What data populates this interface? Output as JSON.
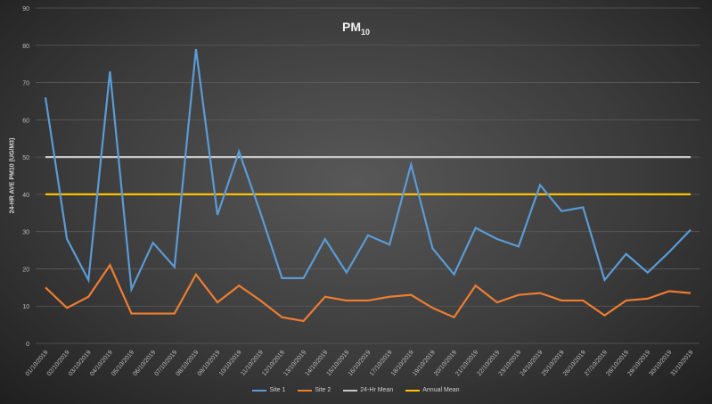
{
  "chart_data": {
    "type": "line",
    "title_main": "PM",
    "title_sub": "10",
    "xlabel": "",
    "ylabel": "24-HR AVE PM10 (UG/M3)",
    "ylim": [
      0,
      90
    ],
    "yticks": [
      0,
      10,
      20,
      30,
      40,
      50,
      60,
      70,
      80,
      90
    ],
    "grid": true,
    "legend": "bottom",
    "categories": [
      "01/10/2019",
      "02/10/2019",
      "03/10/2019",
      "04/10/2019",
      "05/10/2019",
      "06/10/2019",
      "07/10/2019",
      "08/10/2019",
      "09/10/2019",
      "10/10/2019",
      "11/10/2019",
      "12/10/2019",
      "13/10/2019",
      "14/10/2019",
      "15/10/2019",
      "16/10/2019",
      "17/10/2019",
      "18/10/2019",
      "19/10/2019",
      "20/10/2019",
      "21/10/2019",
      "22/10/2019",
      "23/10/2019",
      "24/10/2019",
      "25/10/2019",
      "26/10/2019",
      "27/10/2019",
      "28/10/2019",
      "29/10/2019",
      "30/10/2019",
      "31/10/2019"
    ],
    "series": [
      {
        "name": "Site 1",
        "color": "#5b9bd5",
        "values": [
          66,
          28,
          17,
          73,
          14.5,
          27,
          20.5,
          79,
          34.5,
          51.5,
          35,
          17.5,
          17.5,
          28,
          19,
          29,
          26.5,
          48,
          25.5,
          18.5,
          31,
          28,
          26,
          42.5,
          35.5,
          36.5,
          17,
          24,
          19,
          24.5,
          30.5
        ]
      },
      {
        "name": "Site 2",
        "color": "#ed7d31",
        "values": [
          15,
          9.5,
          12.5,
          21,
          8,
          8,
          8,
          18.5,
          11,
          15.5,
          11.5,
          7,
          6,
          12.5,
          11.5,
          11.5,
          12.5,
          13,
          9.5,
          7,
          15.5,
          11,
          13,
          13.5,
          11.5,
          11.5,
          7.5,
          11.5,
          12,
          14,
          13.5
        ]
      },
      {
        "name": "24-Hr Mean",
        "color": "#c8c8c8",
        "values": [
          50,
          50,
          50,
          50,
          50,
          50,
          50,
          50,
          50,
          50,
          50,
          50,
          50,
          50,
          50,
          50,
          50,
          50,
          50,
          50,
          50,
          50,
          50,
          50,
          50,
          50,
          50,
          50,
          50,
          50,
          50
        ]
      },
      {
        "name": "Annual Mean",
        "color": "#ffc000",
        "values": [
          40,
          40,
          40,
          40,
          40,
          40,
          40,
          40,
          40,
          40,
          40,
          40,
          40,
          40,
          40,
          40,
          40,
          40,
          40,
          40,
          40,
          40,
          40,
          40,
          40,
          40,
          40,
          40,
          40,
          40,
          40
        ]
      }
    ]
  }
}
